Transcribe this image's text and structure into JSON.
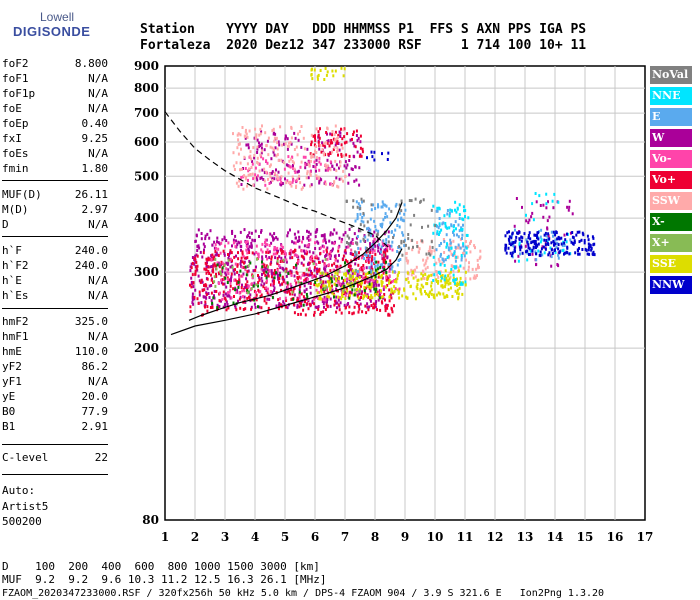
{
  "logo": {
    "line1": "Lowell",
    "line2": "DIGISONDE"
  },
  "header": {
    "row1": "Station    YYYY DAY   DDD HHMMSS P1  FFS S AXN PPS IGA PS",
    "row2": "Fortaleza  2020 Dez12 347 233000 RSF     1 714 100 10+ 11"
  },
  "params": [
    {
      "name": "foF2",
      "value": "8.800"
    },
    {
      "name": "foF1",
      "value": "N/A"
    },
    {
      "name": "foF1p",
      "value": "N/A"
    },
    {
      "name": "foE",
      "value": "N/A"
    },
    {
      "name": "foEp",
      "value": "0.40"
    },
    {
      "name": "fxI",
      "value": "9.25"
    },
    {
      "name": "foEs",
      "value": "N/A"
    },
    {
      "name": "fmin",
      "value": "1.80"
    },
    {
      "name": "MUF(D)",
      "value": "26.11"
    },
    {
      "name": "M(D)",
      "value": "2.97"
    },
    {
      "name": "D",
      "value": "N/A"
    },
    {
      "name": "h`F",
      "value": "240.0"
    },
    {
      "name": "h`F2",
      "value": "240.0"
    },
    {
      "name": "h`E",
      "value": "N/A"
    },
    {
      "name": "h`Es",
      "value": "N/A"
    },
    {
      "name": "hmF2",
      "value": "325.0"
    },
    {
      "name": "hmF1",
      "value": "N/A"
    },
    {
      "name": "hmE",
      "value": "110.0"
    },
    {
      "name": "yF2",
      "value": "86.2"
    },
    {
      "name": "yF1",
      "value": "N/A"
    },
    {
      "name": "yE",
      "value": "20.0"
    },
    {
      "name": "B0",
      "value": "77.9"
    },
    {
      "name": "B1",
      "value": "2.91"
    },
    {
      "name": "C-level",
      "value": "22"
    }
  ],
  "auto": {
    "line1": "Auto:",
    "line2": "Artist5",
    "line3": "500200"
  },
  "bottom": {
    "d_row": "D    100  200  400  600  800 1000 1500 3000 [km]",
    "muf_row": "MUF  9.2  9.2  9.6 10.3 11.2 12.5 16.3 26.1 [MHz]",
    "footer": "FZAOM_2020347233000.RSF / 320fx256h 50 kHz 5.0 km / DPS-4 FZAOM 904 / 3.9 S 321.6 E   Ion2Png 1.3.20"
  },
  "legend": [
    {
      "label": "NoVal",
      "color": "#808080"
    },
    {
      "label": "NNE",
      "color": "#00e5ff"
    },
    {
      "label": "E",
      "color": "#5aaaee"
    },
    {
      "label": "W",
      "color": "#aa0099"
    },
    {
      "label": "Vo-",
      "color": "#ff44aa"
    },
    {
      "label": "Vo+",
      "color": "#ee0033"
    },
    {
      "label": "SSW",
      "color": "#ffaaaa"
    },
    {
      "label": "X-",
      "color": "#007700"
    },
    {
      "label": "X+",
      "color": "#88bb55"
    },
    {
      "label": "SSE",
      "color": "#dddd00"
    },
    {
      "label": "NNW",
      "color": "#0000cc"
    }
  ],
  "chart_data": {
    "type": "scatter",
    "title": "",
    "xlabel": "",
    "ylabel": "",
    "x_scale": "linear",
    "y_scale": "log",
    "xlim": [
      1,
      17
    ],
    "ylim": [
      80,
      900
    ],
    "x_ticks": [
      "1",
      "2",
      "3",
      "4",
      "5",
      "6",
      "7",
      "8",
      "9",
      "10",
      "11",
      "12",
      "13",
      "14",
      "15",
      "16",
      "17"
    ],
    "y_ticks": [
      "80",
      "200",
      "300",
      "400",
      "500",
      "600",
      "700",
      "800",
      "900"
    ],
    "grid": true,
    "legend_position": "right",
    "series": [
      {
        "color": "#aa0099",
        "clusters": [
          {
            "x": [
              1.8,
              8.5
            ],
            "y": [
              250,
              380
            ],
            "n": 700
          },
          {
            "x": [
              3.5,
              7.5
            ],
            "y": [
              480,
              640
            ],
            "n": 160
          },
          {
            "x": [
              12.6,
              14.6
            ],
            "y": [
              310,
              450
            ],
            "n": 50
          }
        ]
      },
      {
        "color": "#ee0033",
        "clusters": [
          {
            "x": [
              1.8,
              8.6
            ],
            "y": [
              240,
              340
            ],
            "n": 500
          },
          {
            "x": [
              5.8,
              7.6
            ],
            "y": [
              560,
              650
            ],
            "n": 60
          }
        ]
      },
      {
        "color": "#ff44aa",
        "clusters": [
          {
            "x": [
              2.5,
              8.8
            ],
            "y": [
              260,
              360
            ],
            "n": 220
          },
          {
            "x": [
              3.5,
              6.5
            ],
            "y": [
              480,
              560
            ],
            "n": 60
          }
        ]
      },
      {
        "color": "#ffaaaa",
        "clusters": [
          {
            "x": [
              3.2,
              7.0
            ],
            "y": [
              470,
              660
            ],
            "n": 200
          },
          {
            "x": [
              9.0,
              11.5
            ],
            "y": [
              290,
              360
            ],
            "n": 120
          }
        ]
      },
      {
        "color": "#dddd00",
        "clusters": [
          {
            "x": [
              6.0,
              11.0
            ],
            "y": [
              262,
              305
            ],
            "n": 260
          },
          {
            "x": [
              5.8,
              7.0
            ],
            "y": [
              840,
              900
            ],
            "n": 20
          }
        ]
      },
      {
        "color": "#5aaaee",
        "clusters": [
          {
            "x": [
              7.3,
              9.0
            ],
            "y": [
              300,
              440
            ],
            "n": 120
          },
          {
            "x": [
              10.0,
              11.0
            ],
            "y": [
              320,
              420
            ],
            "n": 60
          },
          {
            "x": [
              12.5,
              14.5
            ],
            "y": [
              320,
              380
            ],
            "n": 40
          }
        ]
      },
      {
        "color": "#00e5ff",
        "clusters": [
          {
            "x": [
              9.9,
              11.1
            ],
            "y": [
              280,
              440
            ],
            "n": 80
          },
          {
            "x": [
              12.7,
              14.5
            ],
            "y": [
              320,
              460
            ],
            "n": 30
          }
        ]
      },
      {
        "color": "#0000cc",
        "clusters": [
          {
            "x": [
              12.3,
              15.3
            ],
            "y": [
              330,
              375
            ],
            "n": 180
          },
          {
            "x": [
              7.5,
              8.5
            ],
            "y": [
              540,
              575
            ],
            "n": 8
          }
        ]
      },
      {
        "color": "#007700",
        "clusters": [
          {
            "x": [
              2.0,
              8.5
            ],
            "y": [
              250,
              320
            ],
            "n": 70
          }
        ]
      },
      {
        "color": "#88bb55",
        "clusters": [
          {
            "x": [
              2.5,
              7.5
            ],
            "y": [
              270,
              330
            ],
            "n": 40
          }
        ]
      },
      {
        "color": "#808080",
        "clusters": [
          {
            "x": [
              7.0,
              10.0
            ],
            "y": [
              330,
              450
            ],
            "n": 70
          }
        ]
      }
    ],
    "lines": [
      {
        "style": "dashed",
        "x": [
          1.0,
          1.5,
          2.0,
          2.5,
          3.0,
          3.5,
          4.0,
          4.5,
          5.0,
          5.5,
          6.0,
          6.5,
          7.0,
          7.5,
          8.0,
          8.5
        ],
        "y": [
          705,
          635,
          580,
          545,
          515,
          492,
          470,
          455,
          440,
          425,
          415,
          402,
          390,
          378,
          365,
          340
        ]
      },
      {
        "style": "solid",
        "x": [
          1.2,
          2.0,
          3.0,
          4.0,
          5.0,
          6.0,
          6.5,
          7.0,
          7.5,
          8.0,
          8.4,
          8.7,
          8.9
        ],
        "y": [
          215,
          225,
          232,
          240,
          251,
          263,
          269,
          276,
          285,
          295,
          305,
          320,
          340
        ]
      },
      {
        "style": "solid",
        "x": [
          1.8,
          2.2,
          2.8,
          3.5,
          4.5,
          5.5,
          6.3,
          7.0,
          7.6,
          8.0,
          8.4,
          8.7,
          8.9
        ],
        "y": [
          232,
          238,
          246,
          255,
          265,
          280,
          293,
          310,
          330,
          350,
          375,
          400,
          435
        ]
      }
    ]
  }
}
